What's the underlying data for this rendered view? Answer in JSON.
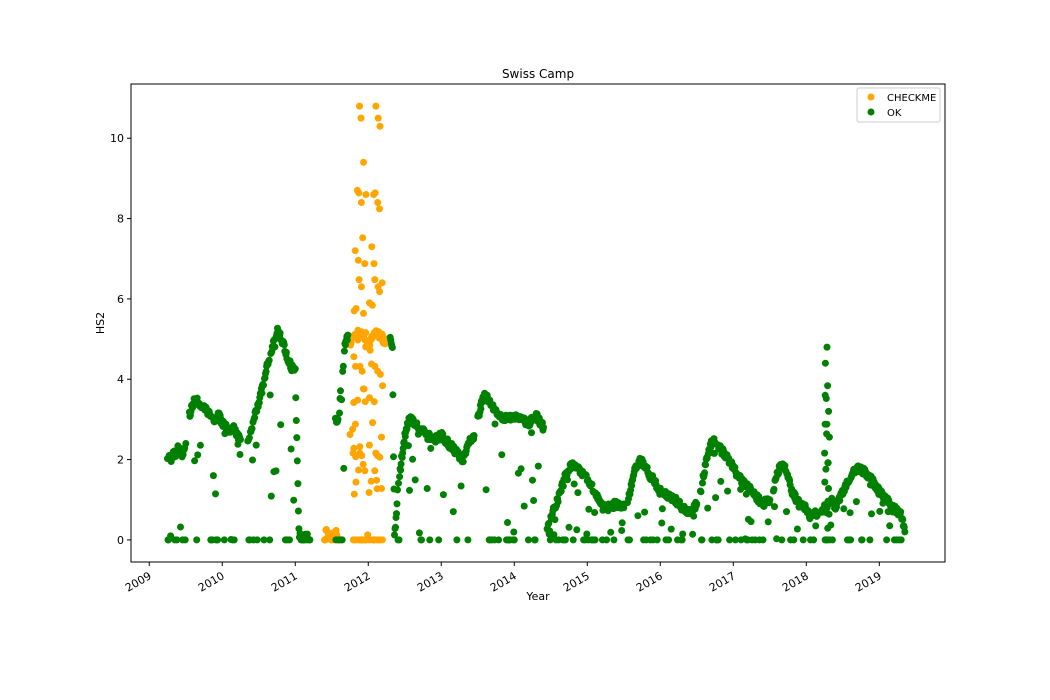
{
  "chart_data": {
    "type": "scatter",
    "title": "Swiss Camp",
    "xlabel": "Year",
    "ylabel": "HS2",
    "xlim": [
      2008.75,
      2019.9
    ],
    "ylim": [
      -0.55,
      11.35
    ],
    "x_ticks": [
      "2009",
      "2010",
      "2011",
      "2012",
      "2013",
      "2014",
      "2015",
      "2016",
      "2017",
      "2018",
      "2019"
    ],
    "y_ticks": [
      0,
      2,
      4,
      6,
      8,
      10
    ],
    "grid": false,
    "legend_placement": "top-right",
    "series": [
      {
        "name": "CHECKME",
        "color": "#ffa500",
        "segments": [
          {
            "x": [
              2011.4,
              2011.42,
              2011.46,
              2011.5,
              2011.53,
              2011.56,
              2011.58
            ],
            "y": [
              0.0,
              0.2,
              0.1,
              0.0,
              0.15,
              0.2,
              0.0
            ]
          },
          {
            "x": [
              2011.75,
              2011.8,
              2011.85,
              2011.9,
              2011.95,
              2012.0,
              2012.05,
              2012.1,
              2012.15,
              2012.2,
              2012.25
            ],
            "y": [
              4.9,
              5.1,
              5.0,
              5.2,
              4.9,
              4.8,
              5.0,
              5.2,
              5.1,
              5.0,
              4.9
            ]
          }
        ],
        "spikes": [
          {
            "x": [
              2011.8,
              2011.83,
              2011.86,
              2011.88,
              2011.91,
              2011.93,
              2011.96
            ],
            "y": [
              5.7,
              7.2,
              8.7,
              10.8,
              10.5,
              9.4,
              8.6
            ]
          },
          {
            "x": [
              2012.02,
              2012.05,
              2012.08,
              2012.1,
              2012.13,
              2012.16,
              2012.19
            ],
            "y": [
              5.9,
              7.3,
              8.6,
              10.8,
              10.5,
              10.3,
              6.4
            ]
          }
        ]
      },
      {
        "name": "OK",
        "color": "#008000",
        "segments": [
          {
            "x": [
              2009.25,
              2009.3,
              2009.35,
              2009.4,
              2009.45,
              2009.5
            ],
            "y": [
              2.1,
              2.0,
              2.2,
              2.3,
              2.1,
              2.4
            ]
          },
          {
            "x": [
              2009.55,
              2009.6,
              2009.65,
              2009.7,
              2009.75,
              2009.8,
              2009.85,
              2009.9,
              2009.95,
              2010.0,
              2010.05,
              2010.1,
              2010.15,
              2010.2,
              2010.25
            ],
            "y": [
              3.1,
              3.4,
              3.5,
              3.4,
              3.3,
              3.2,
              3.1,
              3.0,
              3.1,
              2.9,
              2.8,
              2.7,
              2.8,
              2.6,
              2.5
            ]
          },
          {
            "x": [
              2010.35,
              2010.4,
              2010.45,
              2010.5,
              2010.55,
              2010.6,
              2010.65,
              2010.7,
              2010.75,
              2010.8,
              2010.85,
              2010.9,
              2010.95,
              2011.0,
              2011.05,
              2011.1,
              2011.15,
              2011.2
            ],
            "y": [
              2.5,
              2.7,
              3.1,
              3.4,
              3.8,
              4.2,
              4.6,
              4.9,
              5.2,
              5.1,
              4.8,
              4.5,
              4.3,
              4.2,
              0.2,
              0.0,
              0.1,
              0.0
            ]
          },
          {
            "x": [
              2011.55,
              2011.6,
              2011.62,
              2011.65,
              2011.68,
              2011.7,
              2011.72
            ],
            "y": [
              3.0,
              2.9,
              3.8,
              4.2,
              4.8,
              5.0,
              5.1
            ]
          },
          {
            "x": [
              2012.3,
              2012.33,
              2012.36,
              2012.38,
              2012.4,
              2012.45,
              2012.5,
              2012.55,
              2012.6,
              2012.65,
              2012.7,
              2012.8,
              2012.9,
              2013.0,
              2013.1,
              2013.2,
              2013.3,
              2013.4,
              2013.45
            ],
            "y": [
              5.1,
              4.8,
              0.1,
              0.5,
              1.2,
              1.9,
              2.6,
              3.0,
              3.0,
              2.9,
              2.8,
              2.6,
              2.5,
              2.6,
              2.4,
              2.2,
              2.0,
              2.5,
              2.6
            ]
          },
          {
            "x": [
              2013.5,
              2013.55,
              2013.6,
              2013.65,
              2013.7,
              2013.8,
              2013.9,
              2014.0,
              2014.1,
              2014.2,
              2014.3,
              2014.4
            ],
            "y": [
              3.0,
              3.4,
              3.6,
              3.5,
              3.3,
              3.1,
              3.0,
              3.1,
              3.0,
              2.9,
              3.1,
              2.8
            ]
          },
          {
            "x": [
              2014.45,
              2014.5,
              2014.55,
              2014.6,
              2014.7,
              2014.8,
              2014.9,
              2015.0,
              2015.1,
              2015.2,
              2015.3,
              2015.4,
              2015.5
            ],
            "y": [
              0.3,
              0.5,
              0.8,
              1.0,
              1.6,
              1.9,
              1.7,
              1.5,
              1.2,
              0.9,
              0.8,
              0.9,
              0.8
            ]
          },
          {
            "x": [
              2015.55,
              2015.6,
              2015.65,
              2015.7,
              2015.75,
              2015.8,
              2015.9,
              2016.0,
              2016.1,
              2016.2,
              2016.3,
              2016.4,
              2016.5
            ],
            "y": [
              0.9,
              1.3,
              1.7,
              1.9,
              2.0,
              1.8,
              1.5,
              1.2,
              1.1,
              1.0,
              0.8,
              0.7,
              0.9
            ]
          },
          {
            "x": [
              2016.55,
              2016.6,
              2016.65,
              2016.7,
              2016.75,
              2016.8,
              2016.9,
              2017.0,
              2017.1,
              2017.2,
              2017.3,
              2017.4,
              2017.5
            ],
            "y": [
              1.2,
              1.7,
              2.1,
              2.4,
              2.5,
              2.3,
              2.1,
              1.8,
              1.5,
              1.3,
              1.1,
              0.9,
              1.0
            ]
          },
          {
            "x": [
              2017.55,
              2017.6,
              2017.65,
              2017.7,
              2017.75,
              2017.8,
              2017.9,
              2018.0,
              2018.05,
              2018.1,
              2018.15
            ],
            "y": [
              1.3,
              1.6,
              1.9,
              1.8,
              1.6,
              1.2,
              0.9,
              0.8,
              0.6,
              0.7,
              0.6
            ]
          },
          {
            "x": [
              2018.2,
              2018.25,
              2018.3,
              2018.35,
              2018.4,
              2018.5,
              2018.6,
              2018.7,
              2018.8,
              2018.9,
              2019.0,
              2019.1,
              2019.2,
              2019.3,
              2019.35
            ],
            "y": [
              0.7,
              0.8,
              0.9,
              1.0,
              0.8,
              1.2,
              1.6,
              1.8,
              1.7,
              1.5,
              1.2,
              1.0,
              0.8,
              0.6,
              0.2
            ]
          }
        ],
        "spikes": [
          {
            "x": [
              2018.25,
              2018.27,
              2018.29,
              2018.31
            ],
            "y": [
              3.6,
              4.4,
              4.8,
              3.2
            ]
          }
        ]
      }
    ]
  }
}
